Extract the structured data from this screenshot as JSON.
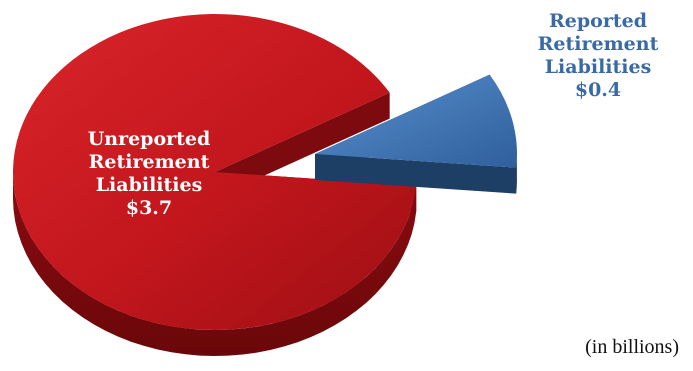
{
  "chart_data": {
    "type": "pie",
    "title": "",
    "units_note": "(in billions)",
    "slices": [
      {
        "label_lines": [
          "Unreported",
          "Retirement",
          "Liabilities"
        ],
        "value_text": "$3.7",
        "value": 3.7,
        "color": "#c0161c",
        "exploded": false
      },
      {
        "label_lines": [
          "Reported",
          "Retirement",
          "Liabilities"
        ],
        "value_text": "$0.4",
        "value": 0.4,
        "color": "#3f76b8",
        "exploded": true
      }
    ],
    "style": "3d-exploded",
    "legend": "none"
  }
}
